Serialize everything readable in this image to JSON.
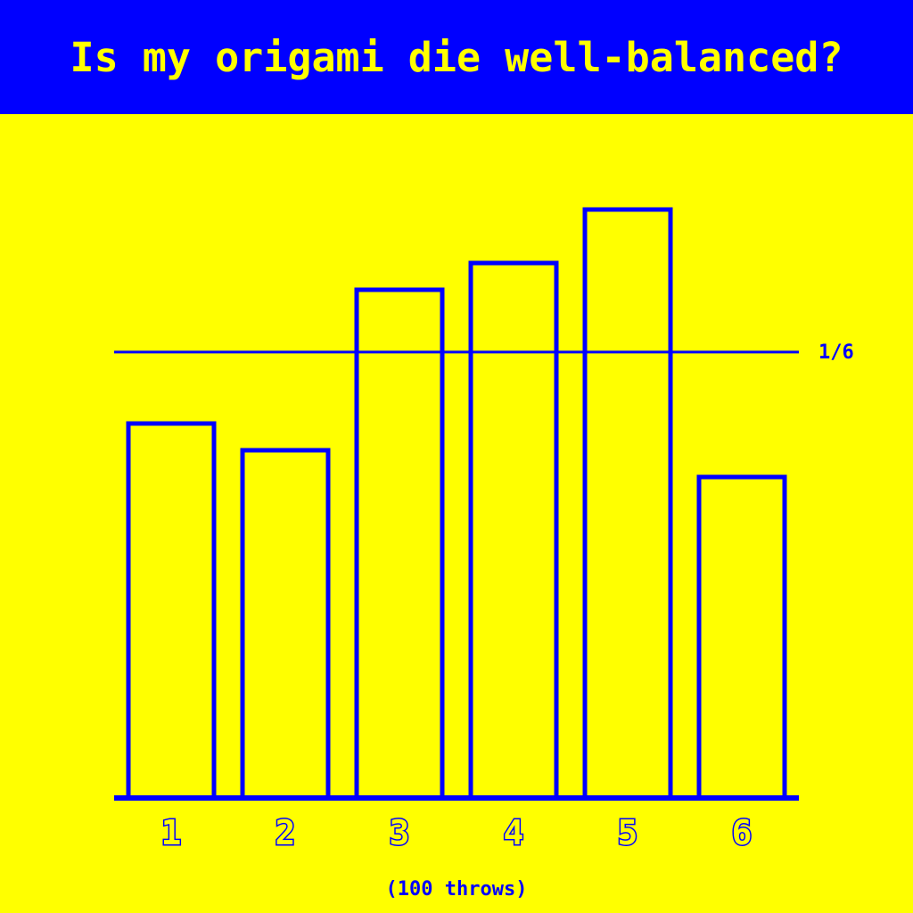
{
  "colors": {
    "background": "#ffff00",
    "header": "#0000ff",
    "ink": "#0000ff"
  },
  "chart_data": {
    "type": "bar",
    "title": "Is my origami die well-balanced?",
    "categories": [
      "1",
      "2",
      "3",
      "4",
      "5",
      "6"
    ],
    "values": [
      14,
      13,
      19,
      20,
      22,
      12
    ],
    "ylim": [
      0,
      22
    ],
    "grid": false,
    "reference_line": {
      "value": 16.67,
      "label": "1/6"
    },
    "caption": "(100 throws)",
    "xlabel": "",
    "ylabel": ""
  }
}
